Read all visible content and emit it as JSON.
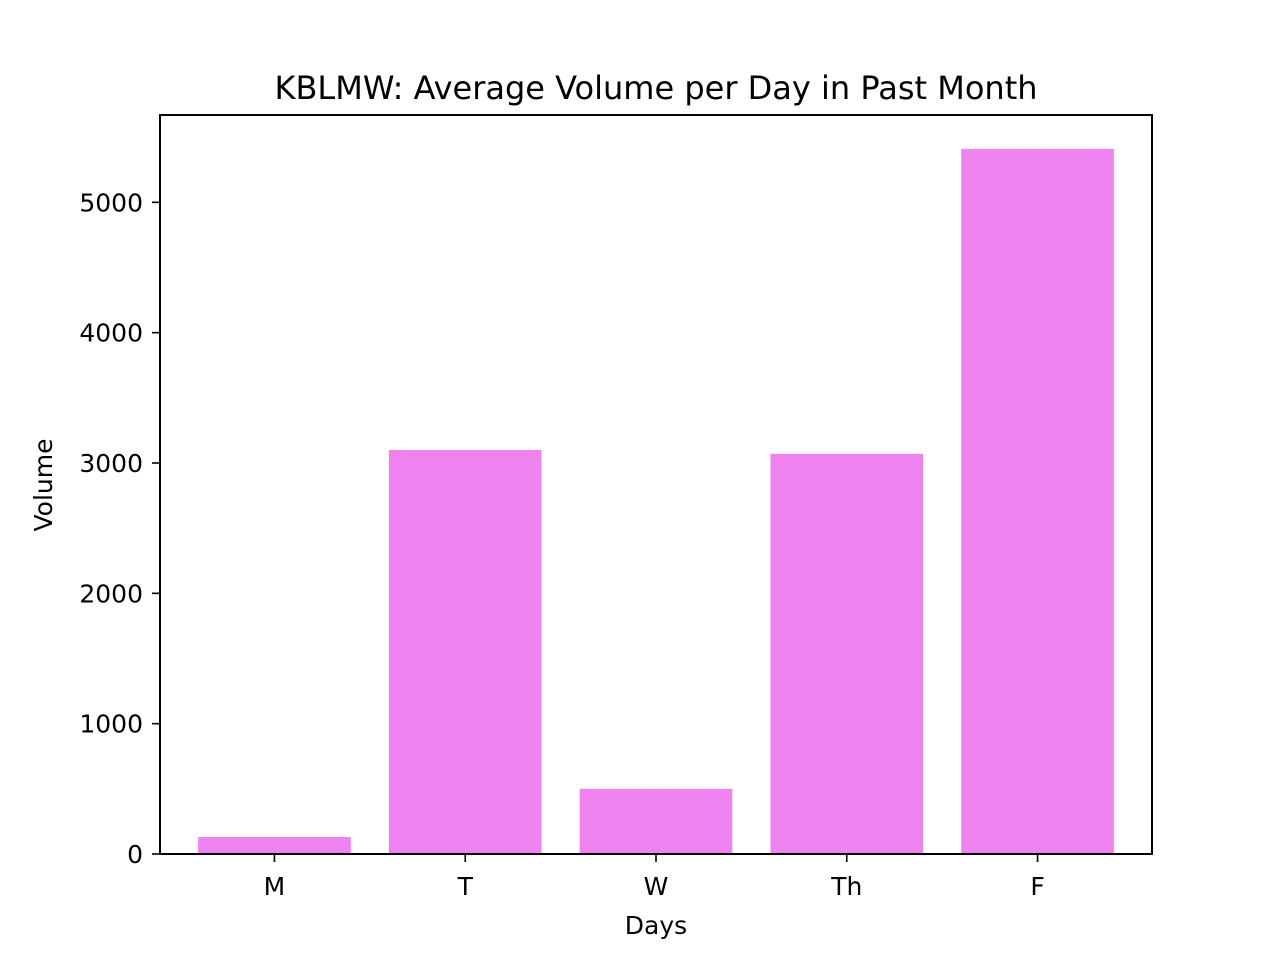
{
  "chart_data": {
    "type": "bar",
    "title": "KBLMW: Average Volume per Day in Past Month",
    "xlabel": "Days",
    "ylabel": "Volume",
    "categories": [
      "M",
      "T",
      "W",
      "Th",
      "F"
    ],
    "values": [
      130,
      3100,
      500,
      3070,
      5410
    ],
    "ylim": [
      0,
      5670
    ],
    "yticks": [
      0,
      1000,
      2000,
      3000,
      4000,
      5000
    ],
    "grid": false,
    "bar_color": "#ee82ee"
  }
}
